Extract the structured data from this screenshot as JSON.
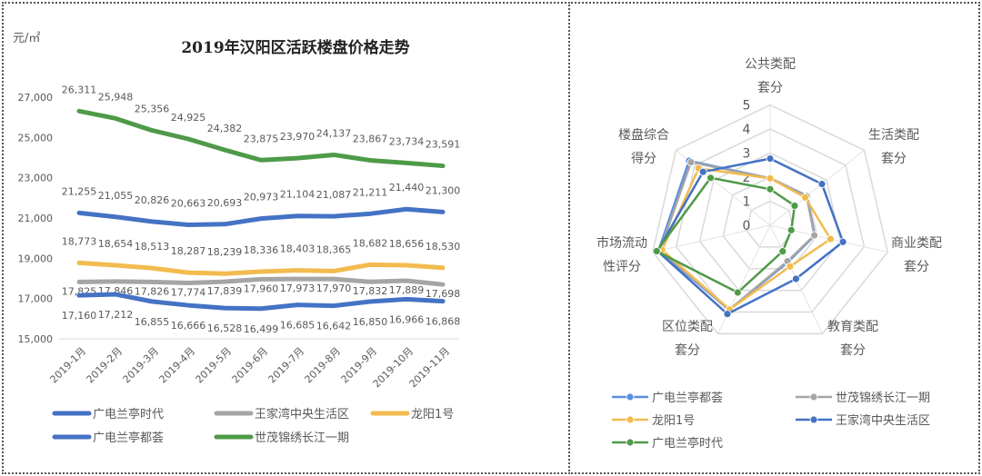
{
  "chart_data": [
    {
      "type": "line",
      "title": "2019年汉阳区活跃楼盘价格走势",
      "ylabel": "元/㎡",
      "xlabel": "",
      "ylim": [
        15000,
        27000
      ],
      "yticks": [
        "15,000",
        "17,000",
        "19,000",
        "21,000",
        "23,000",
        "25,000",
        "27,000"
      ],
      "categories": [
        "2019-1月",
        "2019-2月",
        "2019-3月",
        "2019-4月",
        "2019-5月",
        "2019-6月",
        "2019-7月",
        "2019-8月",
        "2019-9月",
        "2019-10月",
        "2019-11月"
      ],
      "grid": false,
      "legend_placement": "bottom",
      "series": [
        {
          "name": "广电兰亭时代",
          "color": "#4472c4",
          "label_pos": "above",
          "values": [
            21255,
            21055,
            20826,
            20663,
            20693,
            20973,
            21104,
            21087,
            21211,
            21440,
            21300
          ]
        },
        {
          "name": "王家湾中央生活区",
          "color": "#a5a5a5",
          "label_pos": "below",
          "values": [
            17825,
            17846,
            17826,
            17774,
            17839,
            17960,
            17973,
            17970,
            17832,
            17889,
            17698
          ]
        },
        {
          "name": "龙阳1号",
          "color": "#f2bb4f",
          "label_pos": "above",
          "values": [
            18773,
            18654,
            18513,
            18287,
            18239,
            18336,
            18403,
            18365,
            18682,
            18656,
            18530
          ]
        },
        {
          "name": "广电兰亭都荟",
          "color": "#4472c4",
          "label_pos": "below",
          "values": [
            17160,
            17212,
            16855,
            16666,
            16528,
            16499,
            16685,
            16642,
            16850,
            16966,
            16868
          ]
        },
        {
          "name": "世茂锦绣长江一期",
          "color": "#4e9a48",
          "label_pos": "above",
          "values": [
            26311,
            25948,
            25356,
            24925,
            24382,
            23875,
            23970,
            24137,
            23867,
            23734,
            23591
          ]
        }
      ],
      "data_labels": {
        "广电兰亭时代": [
          "21,255",
          "21,055",
          "20,826",
          "20,663",
          "20,693",
          "20,973",
          "21,104",
          "21,087",
          "21,211",
          "21,440",
          "21,300"
        ],
        "王家湾中央生活区": [
          "17,825",
          "17,846",
          "17,826",
          "17,774",
          "17,839",
          "17,960",
          "17,973",
          "17,970",
          "17,832",
          "17,889",
          "17,698"
        ],
        "龙阳1号": [
          "18,773",
          "18,654",
          "18,513",
          "18,287",
          "18,239",
          "18,336",
          "18,403",
          "18,365",
          "18,682",
          "18,656",
          "18,530"
        ],
        "广电兰亭都荟": [
          "17,160",
          "17,212",
          "16,855",
          "16,666",
          "16,528",
          "16,499",
          "16,685",
          "16,642",
          "16,850",
          "16,966",
          "16,868"
        ],
        "世茂锦绣长江一期": [
          "26,311",
          "25,948",
          "25,356",
          "24,925",
          "24,382",
          "23,875",
          "23,970",
          "24,137",
          "23,867",
          "23,734",
          "23,591"
        ]
      }
    },
    {
      "type": "radar",
      "axes": [
        [
          "公共类配",
          "套分"
        ],
        [
          "生活类配",
          "套分"
        ],
        [
          "商业类配",
          "套分"
        ],
        [
          "教育类配",
          "套分"
        ],
        [
          "区位类配",
          "套分"
        ],
        [
          "市场流动",
          "性评分"
        ],
        [
          "楼盘综合",
          "得分"
        ]
      ],
      "rlim": [
        0,
        5
      ],
      "rticks": [
        "0",
        "1",
        "2",
        "3",
        "4",
        "5"
      ],
      "legend_placement": "bottom",
      "series": [
        {
          "name": "广电兰亭都荟",
          "color": "#5b8ee0",
          "values": [
            1.95,
            1.95,
            1.9,
            1.7,
            3.9,
            4.75,
            4.3
          ]
        },
        {
          "name": "世茂锦绣长江一期",
          "color": "#a5a5a5",
          "values": [
            1.95,
            1.94,
            1.88,
            1.66,
            3.88,
            4.7,
            4.2
          ]
        },
        {
          "name": "龙阳1号",
          "color": "#f2bb4f",
          "values": [
            1.95,
            1.86,
            2.57,
            1.9,
            3.88,
            4.6,
            3.8
          ]
        },
        {
          "name": "王家湾中央生活区",
          "color": "#4472c4",
          "values": [
            2.77,
            2.75,
            3.1,
            2.47,
            4.09,
            4.8,
            3.56
          ]
        },
        {
          "name": "广电兰亭时代",
          "color": "#4e9a48",
          "values": [
            1.5,
            1.3,
            0.9,
            1.2,
            3.1,
            4.83,
            3.16
          ]
        }
      ]
    }
  ]
}
